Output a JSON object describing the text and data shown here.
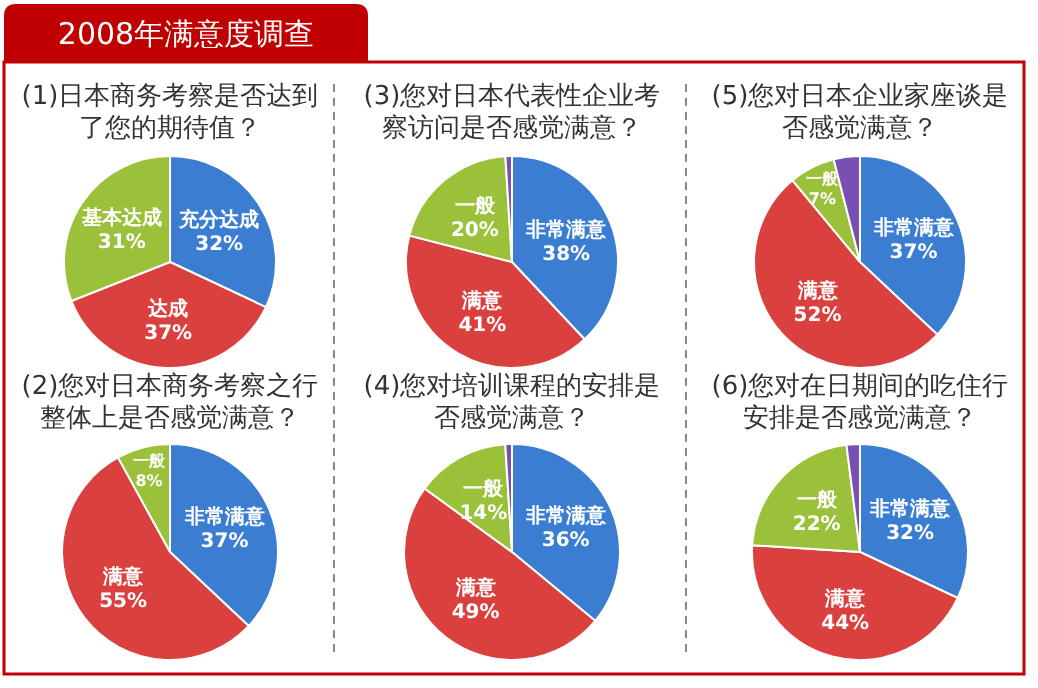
{
  "chart_data": [
    {
      "type": "other",
      "title": "2008年满意度调查"
    },
    {
      "type": "pie",
      "title": "(1)日本商务考察是否达到了您的期待值？",
      "categories": [
        "充分达成",
        "达成",
        "基本达成"
      ],
      "values": [
        32,
        37,
        31
      ],
      "value_labels": [
        "32%",
        "37%",
        "31%"
      ],
      "colors": [
        "#3b7dd0",
        "#d9403e",
        "#9bc13b"
      ]
    },
    {
      "type": "pie",
      "title": "(3)您对日本代表性企业考察访问是否感觉满意？",
      "categories": [
        "非常满意",
        "满意",
        "一般",
        null
      ],
      "values": [
        38,
        41,
        20,
        1
      ],
      "value_labels": [
        "38%",
        "41%",
        "20%",
        null
      ],
      "colors": [
        "#3b7dd0",
        "#d9403e",
        "#9bc13b",
        "#7a4fb3"
      ]
    },
    {
      "type": "pie",
      "title": "(5)您对日本企业家座谈是否感觉满意？",
      "categories": [
        "非常满意",
        "满意",
        "一般",
        null
      ],
      "values": [
        37,
        52,
        7,
        4
      ],
      "value_labels": [
        "37%",
        "52%",
        "7%",
        null
      ],
      "colors": [
        "#3b7dd0",
        "#d9403e",
        "#9bc13b",
        "#7a4fb3"
      ]
    },
    {
      "type": "pie",
      "title": "(2)您对日本商务考察之行整体上是否感觉满意？",
      "categories": [
        "非常满意",
        "满意",
        "一般"
      ],
      "values": [
        37,
        55,
        8
      ],
      "value_labels": [
        "37%",
        "55%",
        "8%"
      ],
      "colors": [
        "#3b7dd0",
        "#d9403e",
        "#9bc13b"
      ]
    },
    {
      "type": "pie",
      "title": "(4)您对培训课程的安排是否感觉满意？",
      "categories": [
        "非常满意",
        "满意",
        "一般",
        null
      ],
      "values": [
        36,
        49,
        14,
        1
      ],
      "value_labels": [
        "36%",
        "49%",
        "14%",
        null
      ],
      "colors": [
        "#3b7dd0",
        "#d9403e",
        "#9bc13b",
        "#7a4fb3"
      ]
    },
    {
      "type": "pie",
      "title": "(6)您对在日期间的吃住行安排是否感觉满意？",
      "categories": [
        "非常满意",
        "满意",
        "一般",
        null
      ],
      "values": [
        32,
        44,
        22,
        2
      ],
      "value_labels": [
        "32%",
        "44%",
        "22%",
        null
      ],
      "colors": [
        "#3b7dd0",
        "#d9403e",
        "#9bc13b",
        "#7a4fb3"
      ]
    }
  ]
}
